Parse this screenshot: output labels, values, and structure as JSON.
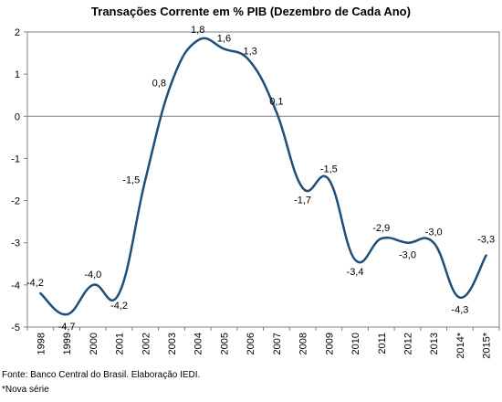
{
  "chart_data": {
    "type": "line",
    "title": "Transações Corrente em % PIB (Dezembro de Cada Ano)",
    "categories": [
      "1998",
      "1999",
      "2000",
      "2001",
      "2002",
      "2003",
      "2004",
      "2005",
      "2006",
      "2007",
      "2008",
      "2009",
      "2010",
      "2011",
      "2012",
      "2013",
      "2014*",
      "2015*"
    ],
    "values": [
      -4.2,
      -4.7,
      -4.0,
      -4.2,
      -1.5,
      0.8,
      1.8,
      1.6,
      1.3,
      0.1,
      -1.7,
      -1.5,
      -3.4,
      -2.9,
      -3.0,
      -3.0,
      -4.3,
      -3.3
    ],
    "data_labels": [
      "-4,2",
      "-4,7",
      "-4,0",
      "-4,2",
      "-1,5",
      "0,8",
      "1,8",
      "1,6",
      "1,3",
      "0,1",
      "-1,7",
      "-1,5",
      "-3,4",
      "-2,9",
      "-3,0",
      "-3,0",
      "-4,3",
      "-3,3"
    ],
    "ylim": [
      -5,
      2
    ],
    "yticks": [
      2,
      1,
      0,
      -1,
      -2,
      -3,
      -4,
      -5
    ],
    "xlabel": "",
    "ylabel": "",
    "grid": false,
    "line_color": "#1f4e79",
    "zero_line_color": "#808080",
    "smooth": true
  },
  "footnotes": {
    "source": "Fonte: Banco Central do Brasil. Elaboração IEDI.",
    "note": "*Nova série"
  }
}
